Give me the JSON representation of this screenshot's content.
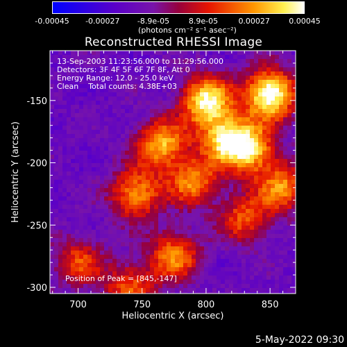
{
  "colorbar": {
    "tick_labels": [
      "-0.00045",
      "-0.00027",
      "-8.9e-05",
      "8.9e-05",
      "0.00027",
      "0.00045"
    ],
    "tick_values": [
      -0.00045,
      -0.00027,
      -8.9e-05,
      8.9e-05,
      0.00027,
      0.00045
    ],
    "unit_label": "(photons cm⁻² s⁻¹ asec⁻²)"
  },
  "chart_data": {
    "type": "heatmap",
    "title": "Reconstructed RHESSI Image",
    "xlabel": "Heliocentric X (arcsec)",
    "ylabel": "Heliocentric Y (arcsec)",
    "xlim": [
      678,
      870
    ],
    "ylim": [
      -305,
      -110
    ],
    "xticks": [
      700,
      750,
      800,
      850
    ],
    "yticks": [
      -150,
      -200,
      -250,
      -300
    ],
    "colormap": "blue-purple-red-yellow-white",
    "peak_position": [
      845,
      -147
    ],
    "hot_spots": [
      {
        "x": 850,
        "y": -145,
        "intensity": 1.0
      },
      {
        "x": 800,
        "y": -150,
        "intensity": 0.85
      },
      {
        "x": 815,
        "y": -180,
        "intensity": 0.75
      },
      {
        "x": 835,
        "y": -190,
        "intensity": 0.7
      },
      {
        "x": 765,
        "y": -185,
        "intensity": 0.7
      },
      {
        "x": 745,
        "y": -225,
        "intensity": 0.65
      },
      {
        "x": 790,
        "y": -215,
        "intensity": 0.6
      },
      {
        "x": 775,
        "y": -275,
        "intensity": 0.6
      },
      {
        "x": 860,
        "y": -220,
        "intensity": 0.6
      },
      {
        "x": 830,
        "y": -245,
        "intensity": 0.5
      },
      {
        "x": 740,
        "y": -300,
        "intensity": 0.5
      },
      {
        "x": 700,
        "y": -280,
        "intensity": 0.45
      }
    ],
    "annotations": {
      "time": "13-Sep-2003 11:23:56.000 to 11:29:56.000",
      "detectors": "Detectors: 3F 4F 5F 6F 7F 8F, Att 0",
      "energy": "Energy Range: 12.0 - 25.0 keV",
      "clean": "Clean    Total counts: 4.38E+03",
      "peak": "Position of Peak = [845,-147]"
    }
  },
  "footer": {
    "date": "5-May-2022 09:30"
  }
}
